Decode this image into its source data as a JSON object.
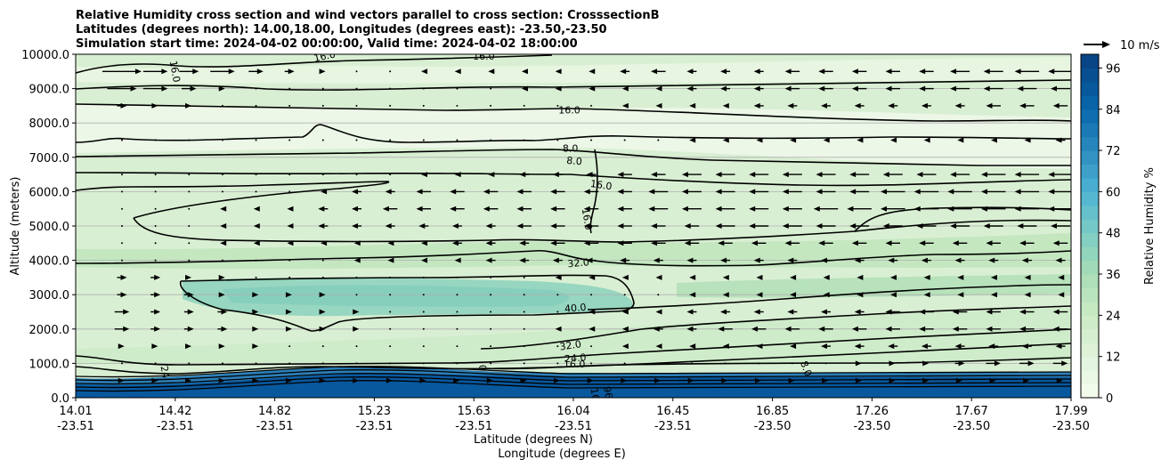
{
  "chart_data": {
    "type": "contour",
    "title_lines": [
      "Relative Humidity cross section and wind vectors parallel to cross section: CrosssectionB",
      "Latitudes (degrees north): 14.00,18.00, Longitudes (degrees east): -23.50,-23.50",
      "Simulation start time: 2024-04-02 00:00:00, Valid time: 2024-04-02 18:00:00"
    ],
    "ylabel": "Altitude (meters)",
    "xlabel_lat": "Latitude (degrees N)",
    "xlabel_lon": "Longitude (degrees E)",
    "ylim": [
      0,
      10000
    ],
    "y_ticks": [
      {
        "value": 0,
        "label": "0.0"
      },
      {
        "value": 1000,
        "label": "1000.0"
      },
      {
        "value": 2000,
        "label": "2000.0"
      },
      {
        "value": 3000,
        "label": "3000.0"
      },
      {
        "value": 4000,
        "label": "4000.0"
      },
      {
        "value": 5000,
        "label": "5000.0"
      },
      {
        "value": 6000,
        "label": "6000.0"
      },
      {
        "value": 7000,
        "label": "7000.0"
      },
      {
        "value": 8000,
        "label": "8000.0"
      },
      {
        "value": 9000,
        "label": "9000.0"
      },
      {
        "value": 10000,
        "label": "10000.0"
      }
    ],
    "x_ticks": [
      {
        "lat": "14.01",
        "lon": "-23.51"
      },
      {
        "lat": "14.42",
        "lon": "-23.51"
      },
      {
        "lat": "14.82",
        "lon": "-23.51"
      },
      {
        "lat": "15.23",
        "lon": "-23.51"
      },
      {
        "lat": "15.63",
        "lon": "-23.51"
      },
      {
        "lat": "16.04",
        "lon": "-23.51"
      },
      {
        "lat": "16.45",
        "lon": "-23.51"
      },
      {
        "lat": "16.85",
        "lon": "-23.50"
      },
      {
        "lat": "17.26",
        "lon": "-23.50"
      },
      {
        "lat": "17.67",
        "lon": "-23.50"
      },
      {
        "lat": "17.99",
        "lon": "-23.50"
      }
    ],
    "colorbar": {
      "label": "Relative Humidity %",
      "min": 0,
      "max": 100,
      "step": 4,
      "ticks": [
        0,
        12,
        24,
        36,
        48,
        60,
        72,
        84,
        96
      ]
    },
    "quiver_key": {
      "label": "10 m/s",
      "speed": 10
    },
    "contour_levels": [
      8,
      16,
      24,
      32,
      40
    ],
    "contour_labels": [
      {
        "text": "16.0",
        "lat_frac": 0.25,
        "alt": 9950,
        "rot": -12
      },
      {
        "text": "16.0",
        "lat_frac": 0.41,
        "alt": 9950,
        "rot": 0
      },
      {
        "text": "16.0",
        "lat_frac": 0.1,
        "alt": 9500,
        "rot": 80
      },
      {
        "text": "16.0",
        "lat_frac": 0.496,
        "alt": 8380,
        "rot": 0
      },
      {
        "text": "8.0",
        "lat_frac": 0.497,
        "alt": 7270,
        "rot": 0
      },
      {
        "text": "8.0",
        "lat_frac": 0.501,
        "alt": 6900,
        "rot": 5
      },
      {
        "text": "16.0",
        "lat_frac": 0.528,
        "alt": 6200,
        "rot": 8
      },
      {
        "text": "16.0",
        "lat_frac": 0.514,
        "alt": 5200,
        "rot": 80
      },
      {
        "text": "32.0",
        "lat_frac": 0.505,
        "alt": 3930,
        "rot": -5
      },
      {
        "text": "40.0",
        "lat_frac": 0.502,
        "alt": 2620,
        "rot": -5
      },
      {
        "text": "32.0",
        "lat_frac": 0.497,
        "alt": 1530,
        "rot": -8
      },
      {
        "text": "24.0",
        "lat_frac": 0.502,
        "alt": 1160,
        "rot": -5
      },
      {
        "text": "16.0",
        "lat_frac": 0.501,
        "alt": 980,
        "rot": 0
      },
      {
        "text": "8.0",
        "lat_frac": 0.734,
        "alt": 850,
        "rot": 70
      },
      {
        "text": "24",
        "lat_frac": 0.09,
        "alt": 750,
        "rot": 80
      },
      {
        "text": "0",
        "lat_frac": 0.409,
        "alt": 870,
        "rot": 85
      },
      {
        "text": "16",
        "lat_frac": 0.522,
        "alt": 100,
        "rot": 80
      },
      {
        "text": "96",
        "lat_frac": 0.535,
        "alt": 150,
        "rot": 80
      }
    ],
    "wind_rows": [
      {
        "alt": 9500,
        "speeds": [
          8,
          5,
          4,
          5,
          3,
          2,
          1,
          0,
          0,
          -1,
          -1,
          -1,
          -1,
          -1,
          -1,
          -2,
          -3,
          -2,
          -2,
          -2,
          -3,
          -3,
          -3,
          -3,
          -3,
          -4,
          -4,
          -5,
          -5
        ]
      },
      {
        "alt": 9000,
        "speeds": [
          6,
          5,
          3,
          1,
          0,
          0,
          0,
          0,
          0,
          0,
          0,
          0,
          -1,
          -1,
          -1,
          -1,
          -1,
          -2,
          -2,
          -2,
          -3,
          -3,
          -3,
          -3,
          -3,
          -4,
          -4,
          -4,
          -4
        ]
      },
      {
        "alt": 8500,
        "speeds": [
          2,
          1,
          1,
          0,
          0,
          0,
          0,
          0,
          0,
          0,
          0,
          0,
          0,
          0,
          0,
          -1,
          -1,
          -1,
          -1,
          -2,
          -2,
          -2,
          -2,
          -2,
          -2,
          -2,
          -3,
          -3,
          -3
        ]
      },
      {
        "alt": 7500,
        "speeds": [
          0,
          0,
          0,
          0,
          0,
          0,
          0,
          0,
          0,
          0,
          0,
          0,
          0,
          0,
          0,
          0,
          0,
          -1,
          -1,
          -1,
          -1,
          -1,
          -1,
          -1,
          -1,
          -1,
          -1,
          -1,
          -2
        ]
      },
      {
        "alt": 6500,
        "speeds": [
          0,
          0,
          0,
          0,
          0,
          0,
          0,
          0,
          0,
          -1,
          -1,
          -1,
          -2,
          -2,
          -2,
          -3,
          -3,
          -4,
          -4,
          -4,
          -4,
          -4,
          -4,
          -4,
          -4,
          -4,
          -5,
          -5,
          -5
        ]
      },
      {
        "alt": 6000,
        "speeds": [
          0,
          0,
          0,
          0,
          0,
          0,
          -1,
          -2,
          -2,
          -3,
          -3,
          -3,
          -3,
          -3,
          -3,
          -3,
          -4,
          -4,
          -4,
          -4,
          -4,
          -4,
          -4,
          -5,
          -5,
          -5,
          -5,
          -5,
          -5
        ]
      },
      {
        "alt": 5500,
        "speeds": [
          0,
          0,
          0,
          -1,
          -1,
          -1,
          -2,
          -2,
          -3,
          -3,
          -3,
          -3,
          -3,
          -3,
          -3,
          -3,
          -4,
          -4,
          -4,
          -4,
          -4,
          -5,
          -5,
          -5,
          -5,
          -5,
          -5,
          -5,
          -5
        ]
      },
      {
        "alt": 5000,
        "speeds": [
          0,
          0,
          0,
          -1,
          -1,
          -1,
          -2,
          -2,
          -2,
          -2,
          -2,
          -2,
          -3,
          -3,
          -3,
          -3,
          -3,
          -3,
          -4,
          -4,
          -4,
          -4,
          -4,
          -4,
          -4,
          -4,
          -4,
          -4,
          -4
        ]
      },
      {
        "alt": 4500,
        "speeds": [
          0,
          0,
          0,
          -1,
          -1,
          -1,
          -1,
          -1,
          -1,
          -1,
          -2,
          -2,
          -2,
          -3,
          -3,
          -3,
          -3,
          -3,
          -3,
          -3,
          -3,
          -3,
          -3,
          -3,
          -3,
          -3,
          -3,
          -3,
          -3
        ]
      },
      {
        "alt": 4000,
        "speeds": [
          0,
          0,
          0,
          0,
          0,
          0,
          0,
          -1,
          -1,
          -1,
          -1,
          -2,
          -2,
          -2,
          -2,
          -2,
          -2,
          -2,
          -2,
          -2,
          -2,
          -2,
          -2,
          -2,
          -2,
          -2,
          -2,
          -2,
          -2
        ]
      },
      {
        "alt": 3500,
        "speeds": [
          2,
          2,
          1,
          1,
          0,
          0,
          0,
          0,
          0,
          0,
          0,
          0,
          0,
          -1,
          -1,
          -1,
          -1,
          -1,
          -1,
          -1,
          -1,
          -1,
          -1,
          -1,
          -1,
          -1,
          -1,
          -1,
          -1
        ]
      },
      {
        "alt": 3000,
        "speeds": [
          2,
          2,
          2,
          1,
          1,
          1,
          1,
          0,
          0,
          0,
          0,
          0,
          0,
          0,
          0,
          0,
          0,
          -1,
          -1,
          -1,
          -1,
          -1,
          -1,
          -1,
          -1,
          -1,
          -1,
          -1,
          -1
        ]
      },
      {
        "alt": 2500,
        "speeds": [
          3,
          2,
          2,
          2,
          1,
          1,
          1,
          1,
          0,
          0,
          0,
          0,
          0,
          0,
          -1,
          -1,
          -1,
          -2,
          -2,
          -2,
          -2,
          -2,
          -2,
          -3,
          -3,
          -3,
          -3,
          -3,
          -3
        ]
      },
      {
        "alt": 2000,
        "speeds": [
          3,
          2,
          2,
          2,
          1,
          1,
          1,
          1,
          0,
          0,
          0,
          0,
          0,
          -1,
          -1,
          -1,
          -2,
          -2,
          -3,
          -3,
          -3,
          -3,
          -3,
          -3,
          -3,
          -3,
          -3,
          -3,
          -3
        ]
      },
      {
        "alt": 1500,
        "speeds": [
          1,
          1,
          1,
          1,
          1,
          0,
          0,
          0,
          0,
          0,
          0,
          0,
          0,
          0,
          0,
          -1,
          -1,
          -1,
          -1,
          -1,
          -1,
          -2,
          -2,
          -2,
          -2,
          -2,
          -2,
          -2,
          -2
        ]
      },
      {
        "alt": 1000,
        "speeds": [
          0,
          0,
          0,
          0,
          0,
          0,
          0,
          0,
          0,
          0,
          0,
          0,
          0,
          0,
          0,
          0,
          0,
          0,
          0,
          0,
          0,
          0,
          1,
          1,
          1,
          2,
          3,
          3,
          3
        ]
      },
      {
        "alt": 500,
        "speeds": [
          1,
          1,
          1,
          1,
          1,
          1,
          1,
          1,
          1,
          1,
          1,
          1,
          1,
          1,
          1,
          1,
          1,
          1,
          1,
          1,
          1,
          1,
          1,
          1,
          1,
          1,
          1,
          1,
          1
        ]
      }
    ]
  }
}
